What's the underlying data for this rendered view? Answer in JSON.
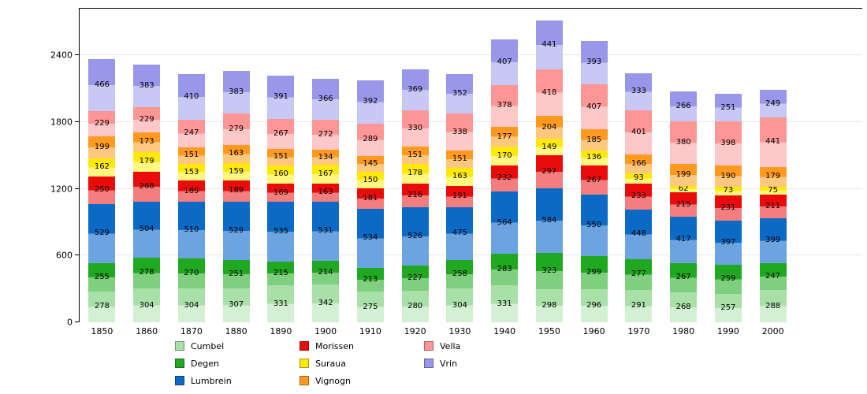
{
  "chart_data": {
    "type": "bar",
    "stacked": true,
    "title": "",
    "xlabel": "",
    "ylabel": "",
    "grid": true,
    "legend_position": "bottom",
    "categories": [
      "1850",
      "1860",
      "1870",
      "1880",
      "1890",
      "1900",
      "1910",
      "1920",
      "1930",
      "1940",
      "1950",
      "1960",
      "1970",
      "1980",
      "1990",
      "2000"
    ],
    "yticks": [
      0,
      600,
      1200,
      1800,
      2400
    ],
    "ylim": [
      0,
      2820
    ],
    "series": [
      {
        "name": "Cumbel",
        "color": "#a8e0a8",
        "color_light": "#d4f0d4",
        "values": [
          278,
          304,
          304,
          307,
          331,
          342,
          275,
          280,
          304,
          331,
          298,
          296,
          291,
          268,
          257,
          288
        ]
      },
      {
        "name": "Degen",
        "color": "#21a821",
        "color_light": "#7ed07e",
        "values": [
          255,
          278,
          270,
          251,
          215,
          214,
          213,
          227,
          258,
          283,
          323,
          299,
          277,
          267,
          259,
          247
        ]
      },
      {
        "name": "Lumbrein",
        "color": "#0b6ac6",
        "color_light": "#6ba4e0",
        "values": [
          529,
          504,
          510,
          529,
          535,
          531,
          534,
          526,
          475,
          564,
          584,
          550,
          448,
          417,
          397,
          399
        ]
      },
      {
        "name": "Morissen",
        "color": "#ea0c0c",
        "color_light": "#f47d7d",
        "values": [
          250,
          268,
          189,
          189,
          169,
          163,
          181,
          216,
          191,
          232,
          297,
          267,
          233,
          215,
          231,
          211
        ]
      },
      {
        "name": "Suraua",
        "color": "#ffe90a",
        "color_light": "#fff77e",
        "values": [
          162,
          179,
          153,
          159,
          160,
          167,
          150,
          178,
          163,
          170,
          149,
          136,
          93,
          62,
          73,
          75
        ]
      },
      {
        "name": "Vignogn",
        "color": "#ff9a1f",
        "color_light": "#ffc87e",
        "values": [
          199,
          173,
          151,
          163,
          151,
          134,
          145,
          151,
          151,
          177,
          204,
          185,
          166,
          199,
          190,
          179
        ]
      },
      {
        "name": "Vella",
        "color": "#fe9696",
        "color_light": "#ffc8c8",
        "values": [
          229,
          229,
          247,
          279,
          267,
          272,
          289,
          330,
          338,
          378,
          418,
          407,
          401,
          380,
          398,
          441
        ]
      },
      {
        "name": "Vrin",
        "color": "#9897ea",
        "color_light": "#c8c8f4",
        "values": [
          466,
          383,
          410,
          383,
          391,
          366,
          392,
          369,
          352,
          407,
          441,
          393,
          333,
          266,
          251,
          249
        ]
      }
    ]
  }
}
